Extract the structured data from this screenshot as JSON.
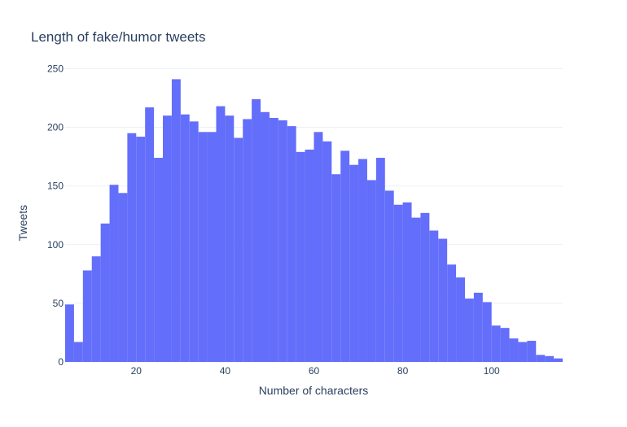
{
  "chart_data": {
    "type": "bar",
    "title": "Length of fake/humor tweets",
    "xlabel": "Number of characters",
    "ylabel": "Tweets",
    "bin_start": 4,
    "bin_width": 2,
    "values": [
      49,
      17,
      78,
      90,
      118,
      151,
      144,
      195,
      192,
      217,
      174,
      210,
      241,
      211,
      205,
      196,
      196,
      218,
      210,
      191,
      207,
      224,
      213,
      208,
      206,
      201,
      179,
      181,
      196,
      188,
      160,
      180,
      168,
      173,
      155,
      174,
      146,
      134,
      136,
      123,
      127,
      112,
      105,
      83,
      72,
      54,
      59,
      51,
      31,
      29,
      20,
      17,
      18,
      6,
      5,
      3
    ],
    "xlim": [
      4,
      116
    ],
    "ylim": [
      0,
      260
    ],
    "x_ticks": [
      20,
      40,
      60,
      80,
      100
    ],
    "y_ticks": [
      0,
      50,
      100,
      150,
      200,
      250
    ],
    "bar_color": "#636efa",
    "grid": true
  }
}
